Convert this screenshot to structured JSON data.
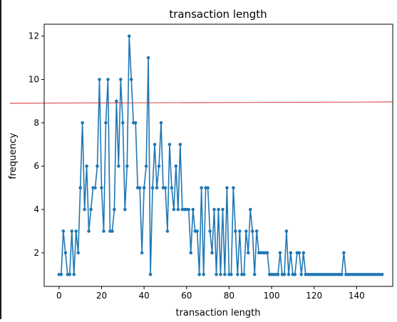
{
  "chart_data": {
    "type": "line",
    "title": "transaction length",
    "xlabel": "transaction length",
    "ylabel": "frequency",
    "xlim": [
      -7,
      157
    ],
    "ylim": [
      0.45,
      12.55
    ],
    "xticks": [
      0,
      20,
      40,
      60,
      80,
      100,
      120,
      140
    ],
    "yticks": [
      2,
      4,
      6,
      8,
      10,
      12
    ],
    "grid": false,
    "series": [
      {
        "color": "#1f77b4",
        "marker": "circle",
        "x": [
          0,
          1,
          2,
          3,
          4,
          5,
          6,
          7,
          8,
          9,
          10,
          11,
          12,
          13,
          14,
          15,
          16,
          17,
          18,
          19,
          20,
          21,
          22,
          23,
          24,
          25,
          26,
          27,
          28,
          29,
          30,
          31,
          32,
          33,
          34,
          35,
          36,
          37,
          38,
          39,
          40,
          41,
          42,
          43,
          44,
          45,
          46,
          47,
          48,
          49,
          50,
          51,
          52,
          53,
          54,
          55,
          56,
          57,
          58,
          59,
          60,
          61,
          62,
          63,
          64,
          65,
          66,
          67,
          68,
          69,
          70,
          71,
          72,
          73,
          74,
          75,
          76,
          77,
          78,
          79,
          80,
          81,
          82,
          83,
          84,
          85,
          86,
          87,
          88,
          89,
          90,
          91,
          92,
          93,
          94,
          95,
          96,
          97,
          98,
          99,
          100,
          101,
          102,
          103,
          104,
          105,
          106,
          107,
          108,
          109,
          110,
          111,
          112,
          113,
          114,
          115,
          116,
          117,
          118,
          119,
          120,
          121,
          122,
          123,
          124,
          125,
          126,
          127,
          128,
          129,
          130,
          131,
          132,
          133,
          134,
          135,
          136,
          137,
          138,
          139,
          140,
          141,
          142,
          143,
          144,
          145,
          146,
          147,
          148,
          149,
          150,
          151,
          152
        ],
        "values": [
          1,
          1,
          3,
          2,
          1,
          1,
          3,
          1,
          3,
          2,
          5,
          8,
          4,
          6,
          3,
          4,
          5,
          5,
          6,
          10,
          5,
          3,
          8,
          10,
          3,
          3,
          4,
          9,
          6,
          10,
          8,
          4,
          6,
          12,
          10,
          8,
          8,
          5,
          5,
          2,
          5,
          6,
          11,
          1,
          5,
          7,
          5,
          6,
          8,
          5,
          5,
          3,
          7,
          5,
          4,
          6,
          4,
          7,
          4,
          4,
          4,
          4,
          2,
          4,
          3,
          3,
          1,
          5,
          1,
          5,
          5,
          3,
          2,
          4,
          1,
          4,
          1,
          4,
          1,
          5,
          1,
          1,
          5,
          3,
          1,
          3,
          1,
          1,
          3,
          2,
          4,
          3,
          1,
          3,
          2,
          2,
          2,
          2,
          2,
          1,
          1,
          1,
          1,
          1,
          2,
          1,
          1,
          3,
          1,
          2,
          1,
          1,
          2,
          2,
          1,
          2,
          1,
          1,
          1,
          1,
          1,
          1,
          1,
          1,
          1,
          1,
          1,
          1,
          1,
          1,
          1,
          1,
          1,
          1,
          2,
          1,
          1,
          1,
          1,
          1,
          1,
          1,
          1,
          1,
          1,
          1,
          1,
          1,
          1,
          1,
          1,
          1,
          1
        ]
      }
    ],
    "hline": {
      "y": 8.9,
      "color": "#d62728"
    }
  }
}
